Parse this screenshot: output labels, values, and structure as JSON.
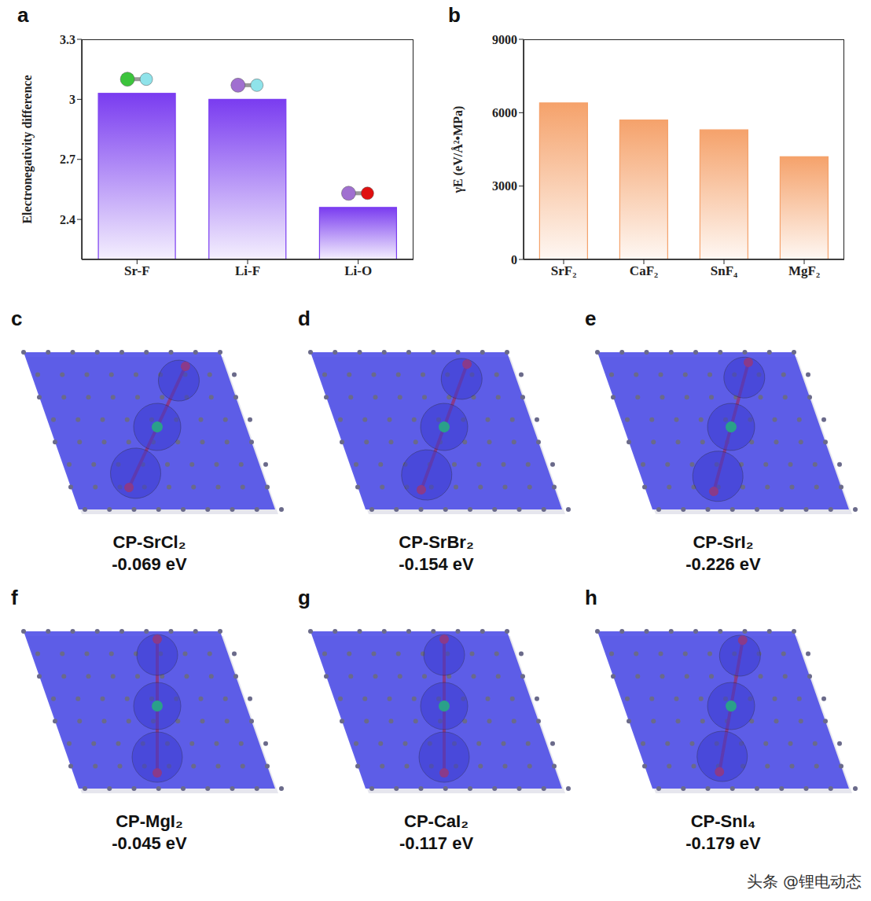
{
  "chart_data": [
    {
      "type": "bar",
      "panel": "a",
      "y_label": "Electronegativity difference",
      "categories": [
        "Sr-F",
        "Li-F",
        "Li-O"
      ],
      "values": [
        3.03,
        3.0,
        2.46
      ],
      "color": "#7a3cf0",
      "ylim": [
        2.2,
        3.3
      ],
      "yticks": [
        2.4,
        2.7,
        3,
        3.3
      ],
      "grid": false
    },
    {
      "type": "bar",
      "panel": "b",
      "y_label": "γE (eV/Å²•MPa)",
      "categories": [
        "SrF₂",
        "CaF₂",
        "SnF₄",
        "MgF₂"
      ],
      "values": [
        6400,
        5700,
        5300,
        4200
      ],
      "color": "#f5a26b",
      "ylim": [
        0,
        9000
      ],
      "yticks": [
        0,
        3000,
        6000,
        9000
      ],
      "grid": false
    }
  ],
  "structures": [
    {
      "panel": "c",
      "label": "CP-SrCl₂",
      "energy": "-0.069 eV"
    },
    {
      "panel": "d",
      "label": "CP-SrBr₂",
      "energy": "-0.154 eV"
    },
    {
      "panel": "e",
      "label": "CP-SrI₂",
      "energy": "-0.226 eV"
    },
    {
      "panel": "f",
      "label": "CP-MgI₂",
      "energy": "-0.045 eV"
    },
    {
      "panel": "g",
      "label": "CP-CaI₂",
      "energy": "-0.117 eV"
    },
    {
      "panel": "h",
      "label": "CP-SnI₄",
      "energy": "-0.179 eV"
    }
  ],
  "watermark": "头条 @锂电动态"
}
